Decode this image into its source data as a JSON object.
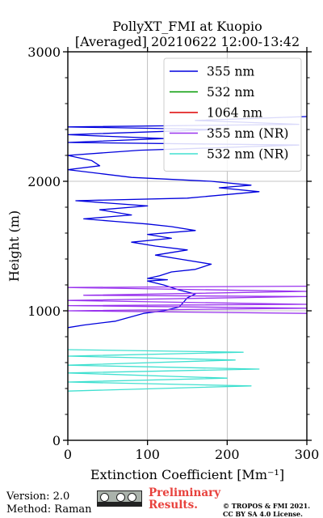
{
  "chart_data": {
    "type": "line",
    "title": "PollyXT_FMI at Kuopio",
    "subtitle": "[Averaged] 20210622 12:00-13:42",
    "xlabel": "Extinction Coefficient [Mm⁻¹]",
    "ylabel": "Height (m)",
    "xlim": [
      0,
      300
    ],
    "ylim": [
      0,
      3000
    ],
    "xticks": [
      0,
      100,
      200,
      300
    ],
    "yticks": [
      0,
      1000,
      2000,
      3000
    ],
    "grid": true,
    "legend_position": "top-right",
    "series": [
      {
        "name": "355 nm",
        "color": "#0000dd",
        "points": [
          [
            0,
            870
          ],
          [
            20,
            890
          ],
          [
            60,
            920
          ],
          [
            95,
            980
          ],
          [
            120,
            1000
          ],
          [
            140,
            1030
          ],
          [
            150,
            1100
          ],
          [
            160,
            1130
          ],
          [
            140,
            1160
          ],
          [
            120,
            1200
          ],
          [
            100,
            1230
          ],
          [
            125,
            1240
          ],
          [
            100,
            1250
          ],
          [
            115,
            1270
          ],
          [
            130,
            1300
          ],
          [
            160,
            1320
          ],
          [
            180,
            1360
          ],
          [
            140,
            1400
          ],
          [
            110,
            1430
          ],
          [
            150,
            1470
          ],
          [
            110,
            1500
          ],
          [
            80,
            1530
          ],
          [
            130,
            1560
          ],
          [
            100,
            1590
          ],
          [
            160,
            1620
          ],
          [
            130,
            1650
          ],
          [
            100,
            1670
          ],
          [
            60,
            1690
          ],
          [
            20,
            1710
          ],
          [
            80,
            1740
          ],
          [
            40,
            1780
          ],
          [
            100,
            1810
          ],
          [
            10,
            1850
          ],
          [
            150,
            1870
          ],
          [
            240,
            1920
          ],
          [
            190,
            1950
          ],
          [
            230,
            1970
          ],
          [
            180,
            2000
          ],
          [
            80,
            2030
          ],
          [
            40,
            2060
          ],
          [
            0,
            2090
          ],
          [
            40,
            2120
          ],
          [
            30,
            2160
          ],
          [
            0,
            2200
          ],
          [
            90,
            2240
          ],
          [
            290,
            2280
          ],
          [
            0,
            2300
          ],
          [
            120,
            2330
          ],
          [
            0,
            2360
          ],
          [
            190,
            2400
          ],
          [
            0,
            2420
          ],
          [
            290,
            2440
          ],
          [
            160,
            2470
          ],
          [
            300,
            2500
          ]
        ]
      },
      {
        "name": "532 nm",
        "color": "#009900",
        "points": []
      },
      {
        "name": "1064 nm",
        "color": "#dd0000",
        "points": []
      },
      {
        "name": "355 nm (NR)",
        "color": "#9933ee",
        "points": [
          [
            300,
            1190
          ],
          [
            0,
            1180
          ],
          [
            300,
            1150
          ],
          [
            20,
            1120
          ],
          [
            300,
            1110
          ],
          [
            0,
            1080
          ],
          [
            300,
            1050
          ],
          [
            0,
            1040
          ],
          [
            300,
            1020
          ],
          [
            0,
            1000
          ],
          [
            300,
            980
          ]
        ]
      },
      {
        "name": "532 nm (NR)",
        "color": "#40e0d0",
        "points": [
          [
            0,
            380
          ],
          [
            230,
            420
          ],
          [
            0,
            450
          ],
          [
            200,
            480
          ],
          [
            0,
            520
          ],
          [
            240,
            550
          ],
          [
            0,
            580
          ],
          [
            210,
            620
          ],
          [
            0,
            650
          ],
          [
            220,
            680
          ],
          [
            0,
            700
          ]
        ]
      }
    ]
  },
  "footer": {
    "version": "Version: 2.0",
    "method": "Method: Raman",
    "preliminary_line1": "Preliminary",
    "preliminary_line2": "Results.",
    "copyright_line1": "© TROPOS & FMI 2021.",
    "copyright_line2": "CC BY SA 4.0 License."
  }
}
